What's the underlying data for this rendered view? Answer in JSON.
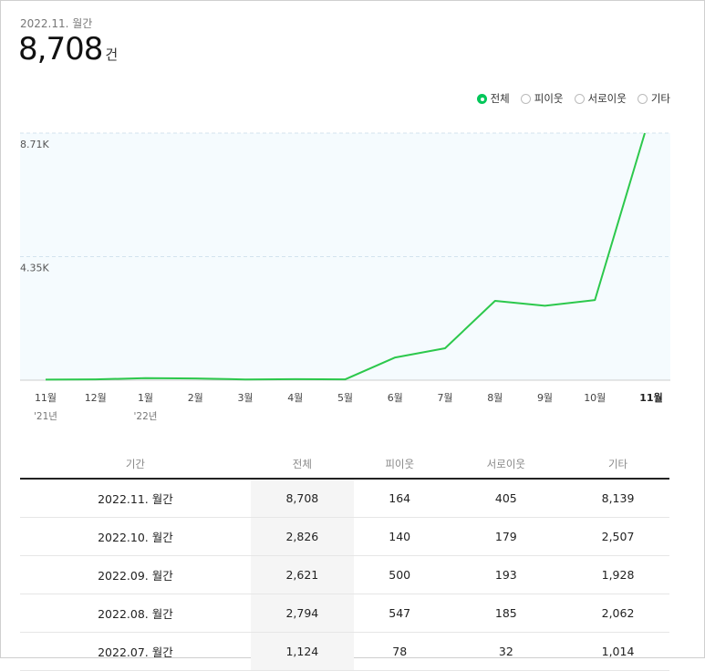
{
  "header": {
    "period": "2022.11. 월간",
    "total": "8,708",
    "unit": "건"
  },
  "legend": [
    {
      "label": "전체",
      "selected": true
    },
    {
      "label": "피이웃",
      "selected": false
    },
    {
      "label": "서로이웃",
      "selected": false
    },
    {
      "label": "기타",
      "selected": false
    }
  ],
  "colors": {
    "line": "#2cc84c",
    "plot_bg": "#f5fbfe",
    "accent": "#03c75a"
  },
  "chart_data": {
    "type": "line",
    "categories": [
      "11월",
      "12월",
      "1월",
      "2월",
      "3월",
      "4월",
      "5월",
      "6월",
      "7월",
      "8월",
      "9월",
      "10월",
      "11월"
    ],
    "year_labels": [
      "'21년",
      "",
      "'22년",
      "",
      "",
      "",
      "",
      "",
      "",
      "",
      "",
      "",
      ""
    ],
    "series": [
      {
        "values": [
          20,
          30,
          70,
          60,
          25,
          35,
          30,
          800,
          1124,
          2794,
          2621,
          2826,
          8708
        ]
      }
    ],
    "y_ticks": [
      {
        "value": 8708,
        "label": "8.71K"
      },
      {
        "value": 4354,
        "label": "4.35K"
      }
    ],
    "ylim": [
      0,
      8708
    ],
    "highlight_index": 12,
    "grid": true
  },
  "table": {
    "headers": [
      "기간",
      "전체",
      "피이웃",
      "서로이웃",
      "기타"
    ],
    "rows": [
      [
        "2022.11. 월간",
        "8,708",
        "164",
        "405",
        "8,139"
      ],
      [
        "2022.10. 월간",
        "2,826",
        "140",
        "179",
        "2,507"
      ],
      [
        "2022.09. 월간",
        "2,621",
        "500",
        "193",
        "1,928"
      ],
      [
        "2022.08. 월간",
        "2,794",
        "547",
        "185",
        "2,062"
      ],
      [
        "2022.07. 월간",
        "1,124",
        "78",
        "32",
        "1,014"
      ]
    ]
  }
}
